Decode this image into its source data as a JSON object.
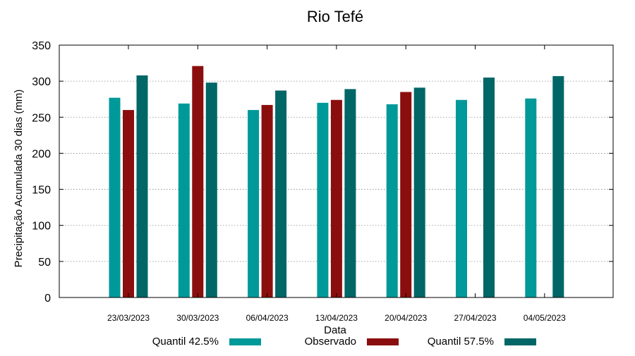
{
  "chart_data": {
    "type": "bar",
    "title": "Rio Tefé",
    "xlabel": "Data",
    "ylabel": "Precipitação Acumulada 30 dias (mm)",
    "ylim": [
      0,
      350
    ],
    "yticks": [
      0,
      50,
      100,
      150,
      200,
      250,
      300,
      350
    ],
    "grid": true,
    "legend_position": "bottom",
    "categories": [
      "23/03/2023",
      "30/03/2023",
      "06/04/2023",
      "13/04/2023",
      "20/04/2023",
      "27/04/2023",
      "04/05/2023"
    ],
    "series": [
      {
        "name": "Quantil 42.5%",
        "color": "#009999",
        "values": [
          277,
          269,
          260,
          270,
          268,
          274,
          276
        ]
      },
      {
        "name": "Observado",
        "color": "#8b0e0e",
        "values": [
          260,
          321,
          267,
          274,
          285,
          null,
          null
        ]
      },
      {
        "name": "Quantil 57.5%",
        "color": "#006666",
        "values": [
          308,
          298,
          287,
          289,
          291,
          305,
          307
        ]
      }
    ]
  }
}
